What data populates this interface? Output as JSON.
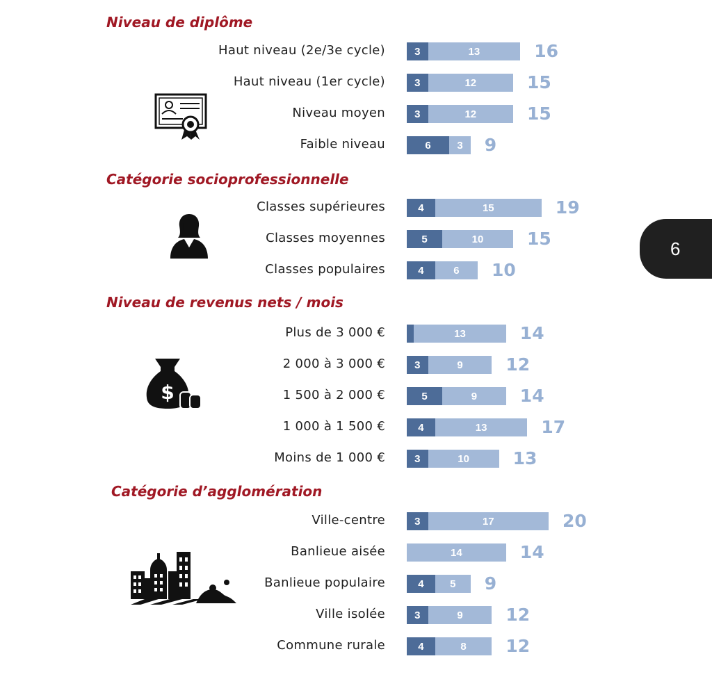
{
  "page_number": "6",
  "colors": {
    "title": "#a01824",
    "segment_dark": "#4d6c98",
    "segment_light": "#a3b9d8",
    "total": "#97b0d3",
    "badge": "#202020"
  },
  "chart_data": {
    "type": "bar",
    "orientation": "horizontal",
    "stacked": true,
    "legend": "none",
    "grid": false,
    "groups": [
      {
        "title": "Niveau de diplôme",
        "icon": "diploma-certificate-icon",
        "rows": [
          {
            "label": "Haut niveau (2e/3e cycle)",
            "dark": 3,
            "light": 13,
            "total": 16
          },
          {
            "label": "Haut niveau (1er cycle)",
            "dark": 3,
            "light": 12,
            "total": 15
          },
          {
            "label": "Niveau moyen",
            "dark": 3,
            "light": 12,
            "total": 15
          },
          {
            "label": "Faible niveau",
            "dark": 6,
            "light": 3,
            "total": 9
          }
        ]
      },
      {
        "title": "Catégorie socioprofessionnelle",
        "icon": "businesswoman-icon",
        "rows": [
          {
            "label": "Classes supérieures",
            "dark": 4,
            "light": 15,
            "total": 19
          },
          {
            "label": "Classes moyennes",
            "dark": 5,
            "light": 10,
            "total": 15
          },
          {
            "label": "Classes populaires",
            "dark": 4,
            "light": 6,
            "total": 10
          }
        ]
      },
      {
        "title": "Niveau de revenus nets / mois",
        "icon": "money-bag-icon",
        "rows": [
          {
            "label": "Plus de 3 000 €",
            "dark": 1,
            "light": 13,
            "total": 14
          },
          {
            "label": "2 000 à 3 000 €",
            "dark": 3,
            "light": 9,
            "total": 12
          },
          {
            "label": "1 500 à 2 000 €",
            "dark": 5,
            "light": 9,
            "total": 14
          },
          {
            "label": "1 000 à 1 500 €",
            "dark": 4,
            "light": 13,
            "total": 17
          },
          {
            "label": "Moins de 1 000 €",
            "dark": 3,
            "light": 10,
            "total": 13
          }
        ]
      },
      {
        "title": "Catégorie d’agglomération",
        "icon": "city-buildings-icon",
        "rows": [
          {
            "label": "Ville-centre",
            "dark": 3,
            "light": 17,
            "total": 20
          },
          {
            "label": "Banlieue aisée",
            "dark": 0,
            "light": 14,
            "total": 14
          },
          {
            "label": "Banlieue populaire",
            "dark": 4,
            "light": 5,
            "total": 9
          },
          {
            "label": "Ville isolée",
            "dark": 3,
            "light": 9,
            "total": 12
          },
          {
            "label": "Commune rurale",
            "dark": 4,
            "light": 8,
            "total": 12
          }
        ]
      }
    ]
  }
}
